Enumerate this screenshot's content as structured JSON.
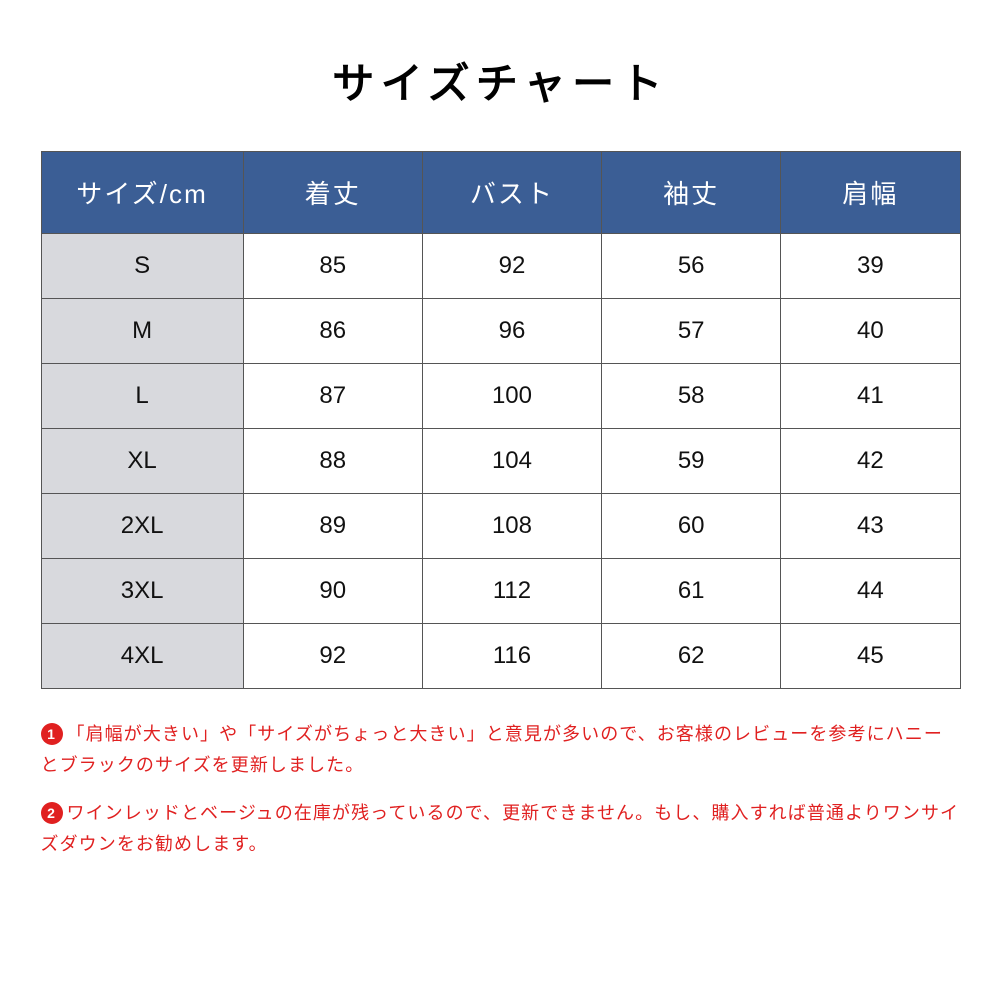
{
  "title": "サイズチャート",
  "title_fontsize": 42,
  "table": {
    "header_bg": "#3b5e95",
    "header_text_color": "#ffffff",
    "header_fontsize": 26,
    "size_col_bg": "#d8d9dd",
    "cell_fontsize": 24,
    "border_color": "#555555",
    "columns": [
      "サイズ/cm",
      "着丈",
      "バスト",
      "袖丈",
      "肩幅"
    ],
    "rows": [
      [
        "S",
        "85",
        "92",
        "56",
        "39"
      ],
      [
        "M",
        "86",
        "96",
        "57",
        "40"
      ],
      [
        "L",
        "87",
        "100",
        "58",
        "41"
      ],
      [
        "XL",
        "88",
        "104",
        "59",
        "42"
      ],
      [
        "2XL",
        "89",
        "108",
        "60",
        "43"
      ],
      [
        "3XL",
        "90",
        "112",
        "61",
        "44"
      ],
      [
        "4XL",
        "92",
        "116",
        "62",
        "45"
      ]
    ]
  },
  "notes": {
    "text_color": "#e02020",
    "badge_bg": "#e02020",
    "fontsize": 18,
    "items": [
      {
        "num": "1",
        "text": "「肩幅が大きい」や「サイズがちょっと大きい」と意見が多いので、お客様のレビューを参考にハニーとブラックのサイズを更新しました。"
      },
      {
        "num": "2",
        "text": "ワインレッドとベージュの在庫が残っているので、更新できません。もし、購入すれば普通よりワンサイズダウンをお勧めします。"
      }
    ]
  }
}
